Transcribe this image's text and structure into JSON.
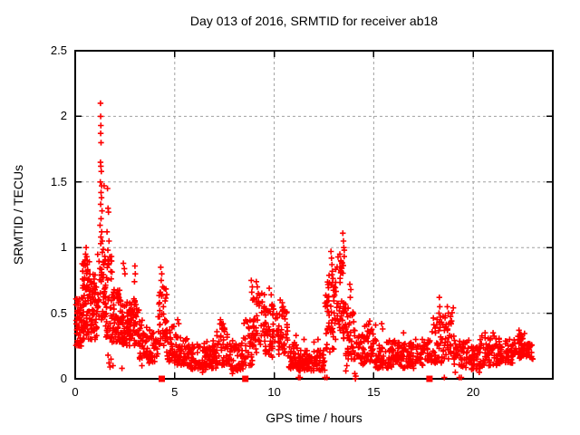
{
  "window": {
    "background": "#ffffff"
  },
  "chart_data": {
    "type": "scatter",
    "title": "Day 013 of 2016, SRMTID for receiver ab18",
    "xlabel": "GPS time / hours",
    "ylabel": "SRMTID / TECUs",
    "xlim": [
      0,
      24
    ],
    "ylim": [
      0,
      2.5
    ],
    "xticks": [
      0,
      5,
      10,
      15,
      20
    ],
    "xtick_labels": [
      "0",
      "5",
      "10",
      "15",
      "20"
    ],
    "yticks": [
      0,
      0.5,
      1,
      1.5,
      2,
      2.5
    ],
    "ytick_labels": [
      "0",
      "0.5",
      "1",
      "1.5",
      "2",
      "2.5"
    ],
    "grid": {
      "style": "dashed",
      "color": "#a0a0a0"
    },
    "axis_color": "#000000",
    "text_color": "#000000",
    "legend": "none",
    "render_seed": 20160113,
    "series": [
      {
        "name": "srmtid",
        "marker": "plus",
        "color": "#ff0000",
        "outlier_points": [
          [
            1.27,
            2.1
          ],
          [
            1.28,
            2.0
          ],
          [
            1.29,
            1.93
          ],
          [
            1.28,
            1.87
          ],
          [
            1.3,
            1.8
          ],
          [
            1.27,
            1.65
          ],
          [
            1.29,
            1.62
          ],
          [
            1.31,
            1.58
          ],
          [
            1.26,
            1.5
          ],
          [
            1.33,
            1.47
          ],
          [
            1.45,
            1.47
          ],
          [
            1.3,
            1.42
          ],
          [
            1.32,
            1.38
          ],
          [
            1.28,
            1.33
          ],
          [
            1.35,
            1.28
          ],
          [
            1.3,
            1.22
          ],
          [
            1.25,
            1.17
          ],
          [
            1.33,
            1.12
          ],
          [
            1.29,
            1.08
          ],
          [
            1.36,
            1.05
          ],
          [
            1.62,
            1.45
          ],
          [
            1.65,
            1.3
          ],
          [
            1.67,
            1.27
          ],
          [
            1.6,
            1.12
          ],
          [
            1.7,
            1.05
          ],
          [
            1.64,
            0.98
          ],
          [
            0.55,
            1.0
          ],
          [
            0.52,
            0.95
          ],
          [
            0.58,
            0.93
          ],
          [
            0.6,
            0.9
          ],
          [
            0.5,
            0.88
          ],
          [
            2.42,
            0.88
          ],
          [
            2.47,
            0.84
          ],
          [
            2.5,
            0.8
          ],
          [
            3.0,
            0.86
          ],
          [
            3.02,
            0.8
          ],
          [
            2.98,
            0.74
          ],
          [
            4.3,
            0.85
          ],
          [
            4.35,
            0.8
          ],
          [
            4.32,
            0.75
          ],
          [
            4.4,
            0.7
          ],
          [
            4.28,
            0.66
          ],
          [
            5.15,
            0.45
          ],
          [
            5.2,
            0.42
          ],
          [
            7.3,
            0.45
          ],
          [
            7.35,
            0.42
          ],
          [
            8.85,
            0.75
          ],
          [
            8.9,
            0.7
          ],
          [
            8.87,
            0.66
          ],
          [
            8.92,
            0.6
          ],
          [
            9.1,
            0.74
          ],
          [
            9.15,
            0.7
          ],
          [
            9.2,
            0.65
          ],
          [
            9.75,
            0.69
          ],
          [
            9.85,
            0.64
          ],
          [
            10.3,
            0.6
          ],
          [
            10.4,
            0.58
          ],
          [
            10.45,
            0.55
          ],
          [
            11.1,
            0.33
          ],
          [
            11.5,
            0.3
          ],
          [
            12.0,
            0.28
          ],
          [
            12.2,
            0.3
          ],
          [
            12.85,
            0.97
          ],
          [
            12.88,
            0.92
          ],
          [
            12.9,
            0.87
          ],
          [
            12.92,
            0.82
          ],
          [
            13.45,
            1.11
          ],
          [
            13.48,
            1.05
          ],
          [
            13.5,
            1.0
          ],
          [
            13.52,
            0.98
          ],
          [
            13.3,
            0.95
          ],
          [
            13.35,
            0.9
          ],
          [
            13.4,
            0.88
          ],
          [
            13.8,
            0.72
          ],
          [
            13.85,
            0.68
          ],
          [
            13.82,
            0.62
          ],
          [
            14.55,
            0.4
          ],
          [
            14.8,
            0.44
          ],
          [
            15.4,
            0.42
          ],
          [
            15.45,
            0.38
          ],
          [
            16.5,
            0.35
          ],
          [
            18.3,
            0.62
          ],
          [
            18.32,
            0.55
          ],
          [
            18.28,
            0.5
          ],
          [
            18.7,
            0.55
          ],
          [
            18.75,
            0.5
          ],
          [
            18.6,
            0.48
          ],
          [
            20.6,
            0.35
          ],
          [
            21.0,
            0.35
          ],
          [
            22.3,
            0.37
          ],
          [
            22.35,
            0.33
          ],
          [
            1.65,
            0.18
          ],
          [
            1.7,
            0.12
          ],
          [
            1.75,
            0.09
          ],
          [
            1.8,
            0.15
          ],
          [
            1.9,
            0.1
          ],
          [
            2.35,
            0.08
          ],
          [
            3.35,
            0.1
          ],
          [
            6.4,
            0.05
          ],
          [
            7.9,
            0.04
          ],
          [
            13.6,
            0.06
          ],
          [
            13.65,
            0.1
          ],
          [
            14.05,
            0.04
          ],
          [
            14.1,
            0.02
          ],
          [
            19.1,
            0.05
          ],
          [
            20.3,
            0.05
          ],
          [
            11.22,
            0.01
          ],
          [
            11.3,
            0.01
          ],
          [
            12.55,
            0.01
          ],
          [
            12.65,
            0.01
          ],
          [
            14.08,
            0.0
          ],
          [
            18.55,
            0.01
          ],
          [
            19.3,
            0.01
          ],
          [
            19.4,
            0.01
          ]
        ],
        "cloud_bands": [
          [
            0.02,
            0.35,
            55,
            0.25,
            0.62,
            1.2
          ],
          [
            0.35,
            0.75,
            75,
            0.3,
            0.92,
            1.3
          ],
          [
            0.75,
            1.1,
            55,
            0.3,
            0.8,
            1.3
          ],
          [
            1.1,
            1.5,
            45,
            0.45,
            1.05,
            1.1
          ],
          [
            1.5,
            1.85,
            45,
            0.3,
            0.95,
            1.3
          ],
          [
            1.85,
            2.3,
            55,
            0.28,
            0.68,
            1.3
          ],
          [
            2.3,
            2.75,
            55,
            0.25,
            0.6,
            1.3
          ],
          [
            2.75,
            3.2,
            50,
            0.25,
            0.62,
            1.3
          ],
          [
            3.2,
            3.7,
            42,
            0.15,
            0.45,
            1.3
          ],
          [
            3.7,
            4.15,
            38,
            0.12,
            0.38,
            1.3
          ],
          [
            4.15,
            4.6,
            42,
            0.25,
            0.7,
            1.2
          ],
          [
            4.6,
            5.1,
            38,
            0.12,
            0.4,
            1.3
          ],
          [
            5.1,
            5.7,
            50,
            0.1,
            0.32,
            1.3
          ],
          [
            5.7,
            6.6,
            65,
            0.07,
            0.27,
            1.3
          ],
          [
            6.6,
            7.1,
            42,
            0.08,
            0.3,
            1.3
          ],
          [
            7.1,
            7.65,
            42,
            0.1,
            0.42,
            1.3
          ],
          [
            7.65,
            8.45,
            55,
            0.06,
            0.3,
            1.3
          ],
          [
            8.45,
            8.95,
            38,
            0.1,
            0.45,
            1.2
          ],
          [
            8.95,
            9.55,
            48,
            0.2,
            0.66,
            1.2
          ],
          [
            9.55,
            10.15,
            50,
            0.15,
            0.58,
            1.2
          ],
          [
            10.15,
            10.7,
            45,
            0.18,
            0.55,
            1.2
          ],
          [
            10.7,
            11.25,
            38,
            0.07,
            0.28,
            1.3
          ],
          [
            11.25,
            12.55,
            105,
            0.06,
            0.22,
            1.2
          ],
          [
            12.55,
            13.0,
            48,
            0.2,
            0.8,
            1.2
          ],
          [
            13.0,
            13.55,
            55,
            0.3,
            0.95,
            1.1
          ],
          [
            13.55,
            14.05,
            42,
            0.15,
            0.6,
            1.3
          ],
          [
            14.05,
            14.6,
            38,
            0.1,
            0.35,
            1.2
          ],
          [
            14.6,
            15.1,
            38,
            0.12,
            0.42,
            1.3
          ],
          [
            15.1,
            16.1,
            70,
            0.08,
            0.3,
            1.2
          ],
          [
            16.1,
            17.1,
            70,
            0.08,
            0.28,
            1.2
          ],
          [
            17.1,
            17.85,
            50,
            0.1,
            0.3,
            1.2
          ],
          [
            17.85,
            18.45,
            42,
            0.12,
            0.48,
            1.2
          ],
          [
            18.45,
            19.05,
            42,
            0.15,
            0.55,
            1.3
          ],
          [
            19.05,
            19.85,
            50,
            0.08,
            0.3,
            1.2
          ],
          [
            19.85,
            20.35,
            38,
            0.07,
            0.25,
            1.2
          ],
          [
            20.35,
            21.35,
            70,
            0.1,
            0.33,
            1.2
          ],
          [
            21.35,
            22.1,
            52,
            0.12,
            0.3,
            1.2
          ],
          [
            22.1,
            22.65,
            42,
            0.15,
            0.35,
            1.2
          ],
          [
            22.65,
            23.0,
            28,
            0.15,
            0.28,
            1.2
          ]
        ]
      },
      {
        "name": "axis-flags",
        "marker": "filled-square",
        "color": "#ff0000",
        "points": [
          [
            4.35,
            0
          ],
          [
            8.55,
            0
          ],
          [
            17.8,
            0
          ]
        ]
      }
    ]
  }
}
